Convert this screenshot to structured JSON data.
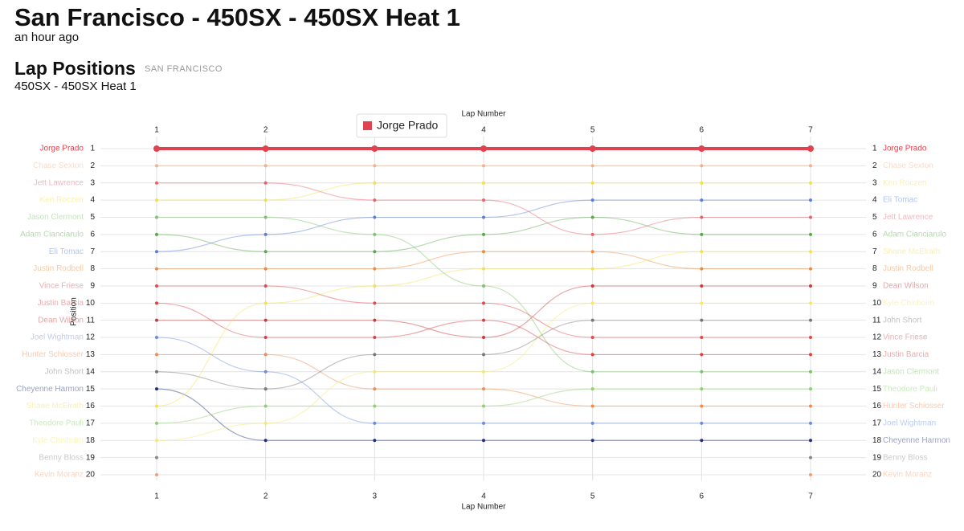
{
  "header": {
    "title": "San Francisco - 450SX - 450SX Heat 1",
    "time": "an hour ago"
  },
  "chart_data": {
    "type": "bump",
    "title": "Lap Positions",
    "tag": "SAN FRANCISCO",
    "subtitle": "450SX - 450SX Heat 1",
    "x_label": "Lap Number",
    "y_label": "Position",
    "highlight": 0,
    "x": [
      1,
      2,
      3,
      4,
      5,
      6,
      7
    ],
    "xlim": [
      1,
      7
    ],
    "xticks": [
      1,
      2,
      3,
      4,
      5,
      6,
      7
    ],
    "ylim": [
      1,
      20
    ],
    "yticks": [
      1,
      2,
      3,
      4,
      5,
      6,
      7,
      8,
      9,
      10,
      11,
      12,
      13,
      14,
      15,
      16,
      17,
      18,
      19,
      20
    ],
    "series": [
      {
        "name": "Jorge Prado",
        "color": "#e0434f",
        "values": [
          1,
          1,
          1,
          1,
          1,
          1,
          1
        ]
      },
      {
        "name": "Chase Sexton",
        "color": "#f5b088",
        "values": [
          2,
          2,
          2,
          2,
          2,
          2,
          2
        ]
      },
      {
        "name": "Jett Lawrence",
        "color": "#e8626c",
        "values": [
          3,
          3,
          4,
          4,
          6,
          5,
          5
        ]
      },
      {
        "name": "Ken Roczen",
        "color": "#f2df4a",
        "values": [
          4,
          4,
          3,
          3,
          3,
          3,
          3
        ]
      },
      {
        "name": "Jason Clermont",
        "color": "#7cc46a",
        "values": [
          5,
          5,
          6,
          9,
          14,
          14,
          14
        ]
      },
      {
        "name": "Adam Cianciarulo",
        "color": "#5aa84a",
        "values": [
          6,
          7,
          7,
          6,
          5,
          6,
          6
        ]
      },
      {
        "name": "Eli Tomac",
        "color": "#5b7fd6",
        "values": [
          7,
          6,
          5,
          5,
          4,
          4,
          4
        ]
      },
      {
        "name": "Justin Rodbell",
        "color": "#ef8a3c",
        "values": [
          8,
          8,
          8,
          7,
          7,
          8,
          8
        ]
      },
      {
        "name": "Vince Friese",
        "color": "#e04a4a",
        "values": [
          9,
          9,
          10,
          10,
          12,
          12,
          12
        ]
      },
      {
        "name": "Justin Barcia",
        "color": "#d94040",
        "values": [
          10,
          12,
          12,
          11,
          13,
          13,
          13
        ]
      },
      {
        "name": "Dean Wilson",
        "color": "#c93a3a",
        "values": [
          11,
          11,
          11,
          12,
          9,
          9,
          9
        ]
      },
      {
        "name": "Joel Wightman",
        "color": "#6b8de0",
        "values": [
          12,
          14,
          17,
          17,
          17,
          17,
          17
        ]
      },
      {
        "name": "Hunter Schiosser",
        "color": "#f08a50",
        "values": [
          13,
          13,
          15,
          15,
          16,
          16,
          16
        ]
      },
      {
        "name": "John Short",
        "color": "#777777",
        "values": [
          14,
          15,
          13,
          13,
          11,
          11,
          11
        ]
      },
      {
        "name": "Cheyenne Harmon",
        "color": "#1f2f7a",
        "values": [
          15,
          18,
          18,
          18,
          18,
          18,
          18
        ]
      },
      {
        "name": "Shane McElrath",
        "color": "#f5e050",
        "values": [
          16,
          10,
          9,
          8,
          8,
          7,
          7
        ]
      },
      {
        "name": "Theodore Pauli",
        "color": "#8cd070",
        "values": [
          17,
          16,
          16,
          16,
          15,
          15,
          15
        ]
      },
      {
        "name": "Kyle Chisholm",
        "color": "#f5e86a",
        "values": [
          18,
          17,
          14,
          14,
          10,
          10,
          10
        ]
      },
      {
        "name": "Benny Bloss",
        "color": "#888888",
        "values": [
          19,
          null,
          null,
          null,
          null,
          null,
          19
        ]
      },
      {
        "name": "Kevin Moranz",
        "color": "#f0a070",
        "values": [
          20,
          null,
          null,
          null,
          null,
          null,
          20
        ]
      }
    ]
  }
}
